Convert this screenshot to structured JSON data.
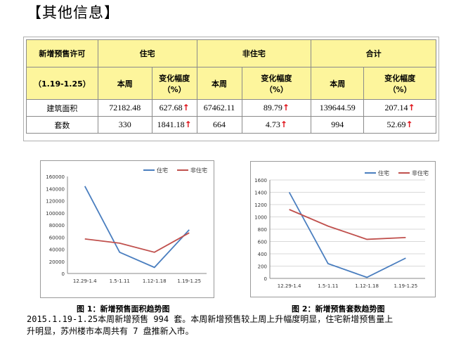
{
  "section_title": "【其他信息】",
  "table": {
    "corner_top": "新增预售许可",
    "corner_bottom": "（1.19-1.25）",
    "groups": [
      "住宅",
      "非住宅",
      "合计"
    ],
    "sub_week": "本周",
    "sub_change_line1": "变化幅度",
    "sub_change_line2": "（%）",
    "rows": [
      {
        "label": "建筑面积",
        "res_week": "72182.48",
        "res_change": "627.68",
        "non_week": "67462.11",
        "non_change": "89.79",
        "tot_week": "139644.59",
        "tot_change": "207.14"
      },
      {
        "label": "套数",
        "res_week": "330",
        "res_change": "1841.18",
        "non_week": "664",
        "non_change": "4.73",
        "tot_week": "994",
        "tot_change": "52.69"
      }
    ],
    "up_arrow_icon": "↑",
    "arrow_color": "#e0141b"
  },
  "chart_data": [
    {
      "type": "line",
      "categories": [
        "12.29-1.4",
        "1.5-1.11",
        "1.12-1.18",
        "1.19-1.25"
      ],
      "series": [
        {
          "name": "住宅",
          "color": "#4a7ebf",
          "values": [
            144000,
            35000,
            10000,
            72000
          ]
        },
        {
          "name": "非住宅",
          "color": "#c0504d",
          "values": [
            57000,
            50000,
            35000,
            67000
          ]
        }
      ],
      "ylim": [
        0,
        160000
      ],
      "yticks": [
        "0",
        "20000",
        "40000",
        "60000",
        "80000",
        "100000",
        "120000",
        "140000",
        "160000"
      ],
      "legend": "top-right",
      "grid": false
    },
    {
      "type": "line",
      "categories": [
        "12.29-1.4",
        "1.5-1.11",
        "1.12-1.18",
        "1.19-1.25"
      ],
      "series": [
        {
          "name": "住宅",
          "color": "#4a7ebf",
          "values": [
            1400,
            240,
            17,
            330
          ]
        },
        {
          "name": "非住宅",
          "color": "#c0504d",
          "values": [
            1120,
            850,
            635,
            664
          ]
        }
      ],
      "ylim": [
        0,
        1600
      ],
      "yticks": [
        "0",
        "200",
        "400",
        "600",
        "800",
        "1000",
        "1200",
        "1400",
        "1600"
      ],
      "legend": "top-right",
      "grid": true
    }
  ],
  "captions": [
    "图 1：新增预售面积趋势图",
    "图 2：新增预售套数趋势图"
  ],
  "paragraph_line1": "2015.1.19-1.25本周新增预售 994 套。本周新增预售较上周上升幅度明显，住宅新增预售量上",
  "paragraph_line2": "升明显，苏州楼市本周共有 7 盘推新入市。"
}
